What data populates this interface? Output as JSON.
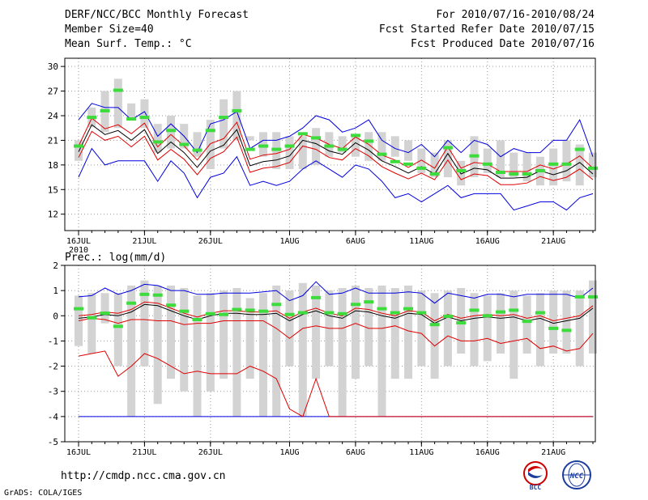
{
  "header": {
    "title": "DERF/NCC/BCC Monthly Forecast",
    "member_size": "Member Size=40",
    "variable": "Mean Surf. Temp.: °C",
    "period": "For 2010/07/16-2010/08/24",
    "start_ref": "Fcst Started Refer Date 2010/07/15",
    "produced": "Fcst Produced Date 2010/07/16"
  },
  "footer": {
    "url": "http://cmdp.ncc.cma.gov.cn",
    "grads": "GrADS: COLA/IGES",
    "logo_bcc": "BCC",
    "logo_ncc": "NCC"
  },
  "colors": {
    "box": "#d3d3d3",
    "median": "#3cdc3c",
    "mean": "#000000",
    "std": "#e00000",
    "minmax": "#0000e0",
    "grid": "#999999"
  },
  "chart_data": [
    {
      "type": "box-ensemble",
      "title": "Mean Surf. Temp.: °C",
      "days": 40,
      "xticks": [
        {
          "day": 0,
          "label": "16JUL",
          "sub": "2010"
        },
        {
          "day": 5,
          "label": "21JUL"
        },
        {
          "day": 10,
          "label": "26JUL"
        },
        {
          "day": 16,
          "label": "1AUG"
        },
        {
          "day": 21,
          "label": "6AUG"
        },
        {
          "day": 26,
          "label": "11AUG"
        },
        {
          "day": 31,
          "label": "16AUG"
        },
        {
          "day": 36,
          "label": "21AUG"
        }
      ],
      "ylim": [
        10,
        31
      ],
      "yticks": [
        12,
        15,
        18,
        21,
        24,
        27,
        30
      ],
      "box_low": [
        18.5,
        22.6,
        22,
        22.5,
        23.5,
        22.5,
        19.5,
        20,
        20,
        19,
        17.5,
        20,
        21,
        21,
        19,
        17.5,
        17.5,
        17.5,
        18,
        19,
        19.5,
        19,
        18.5,
        18.5,
        19,
        18.5,
        17,
        16.5,
        16.5,
        15.5,
        16.5,
        17,
        16.5,
        16.5,
        16,
        15.5,
        15.5,
        16,
        15.5,
        16.5
      ],
      "box_high": [
        21,
        25,
        27,
        28.5,
        25.5,
        26,
        23,
        24,
        23,
        22,
        23.5,
        26,
        27,
        21.5,
        22,
        22,
        21.5,
        21.5,
        22.5,
        22,
        21.5,
        21.5,
        22,
        22,
        21.5,
        21,
        20,
        19.5,
        21,
        18.5,
        21.5,
        20,
        21,
        19.5,
        19.5,
        19,
        20,
        21,
        20.5,
        19.5
      ],
      "median": [
        20.3,
        23.8,
        24.6,
        27.1,
        23.6,
        23.8,
        20.8,
        22.2,
        20.5,
        19.8,
        22.2,
        23.8,
        24.6,
        19.9,
        20.3,
        19.9,
        20.3,
        21.8,
        21.3,
        20.3,
        19.9,
        21.6,
        20.9,
        19.3,
        18.4,
        18.1,
        17.6,
        16.9,
        20.1,
        17.3,
        19.1,
        18.1,
        17.1,
        16.9,
        16.9,
        17.3,
        18.1,
        18.1,
        19.9,
        17.6
      ],
      "mean": [
        19.6,
        22.9,
        21.7,
        22.2,
        21.0,
        22.3,
        19.4,
        20.8,
        19.5,
        17.7,
        19.7,
        20.4,
        22.3,
        17.9,
        18.4,
        18.6,
        19.1,
        21.0,
        20.6,
        19.7,
        19.3,
        20.7,
        19.8,
        18.5,
        17.8,
        17.0,
        17.8,
        16.9,
        19.4,
        16.9,
        17.6,
        17.4,
        16.4,
        16.4,
        16.5,
        17.3,
        16.8,
        17.3,
        18.3,
        16.9
      ],
      "std_high": [
        20.3,
        23.7,
        22.4,
        22.9,
        21.8,
        23.1,
        20.2,
        21.7,
        20.3,
        18.6,
        20.6,
        21.2,
        23.2,
        18.7,
        19.2,
        19.4,
        19.9,
        21.7,
        21.3,
        20.5,
        20.0,
        21.4,
        20.5,
        19.2,
        18.6,
        17.7,
        18.6,
        17.6,
        20.2,
        17.6,
        18.3,
        18.1,
        17.2,
        17.2,
        17.2,
        18.0,
        17.5,
        18.1,
        19.1,
        17.6
      ],
      "std_low": [
        18.9,
        22.1,
        21.0,
        21.5,
        20.2,
        21.5,
        18.6,
        19.9,
        18.7,
        16.8,
        18.8,
        19.6,
        21.4,
        17.1,
        17.6,
        17.8,
        18.3,
        20.3,
        19.9,
        18.9,
        18.6,
        20.0,
        19.1,
        17.8,
        17.0,
        16.3,
        17.0,
        16.2,
        18.6,
        16.2,
        16.9,
        16.7,
        15.6,
        15.6,
        15.8,
        16.6,
        16.1,
        16.5,
        17.5,
        16.2
      ],
      "max": [
        23.5,
        25.5,
        25,
        25,
        23.5,
        24.5,
        21.5,
        23,
        21.5,
        19.5,
        23,
        23.5,
        24.5,
        20,
        21,
        21,
        21.5,
        22.5,
        24,
        23.5,
        22,
        22.5,
        23.5,
        21,
        20,
        19.5,
        20.5,
        19,
        21,
        19.5,
        21,
        20.5,
        19,
        20,
        19.5,
        19.5,
        21,
        21,
        23.5,
        19
      ],
      "min": [
        16.5,
        20,
        18,
        18.5,
        18.5,
        18.5,
        16,
        18.5,
        17,
        14,
        16.5,
        17,
        19,
        15.5,
        16,
        15.5,
        16,
        17.5,
        18.5,
        17.5,
        16.5,
        18,
        17.5,
        16,
        14,
        14.5,
        13.5,
        14.5,
        15.5,
        14,
        14.5,
        14.5,
        14.5,
        12.5,
        13,
        13.5,
        13.5,
        12.5,
        14,
        14.5
      ]
    },
    {
      "type": "box-ensemble",
      "title": "Prec.: log(mm/d)",
      "days": 40,
      "xticks": [
        {
          "day": 0,
          "label": "16JUL",
          "sub": "2010"
        },
        {
          "day": 5,
          "label": "21JUL"
        },
        {
          "day": 10,
          "label": "26JUL"
        },
        {
          "day": 16,
          "label": "1AUG"
        },
        {
          "day": 21,
          "label": "6AUG"
        },
        {
          "day": 26,
          "label": "11AUG"
        },
        {
          "day": 31,
          "label": "16AUG"
        },
        {
          "day": 36,
          "label": "21AUG"
        }
      ],
      "ylim": [
        -5,
        2
      ],
      "yticks": [
        -5,
        -4,
        -3,
        -2,
        -1,
        0,
        1,
        2
      ],
      "box_low": [
        -1.2,
        -1.5,
        -0.3,
        -2,
        -4,
        -2,
        -3.5,
        -2.5,
        -3,
        -4,
        -3,
        -2.5,
        -4,
        -2.5,
        -4,
        -4,
        -2,
        -4,
        -2.5,
        -2,
        -4,
        -2.5,
        -2,
        -4,
        -2.5,
        -2.5,
        -2,
        -2.5,
        -2,
        -1.5,
        -2,
        -1.8,
        -1.5,
        -2.5,
        -1.5,
        -2,
        -1.5,
        -1.5,
        -2,
        -1.5
      ],
      "box_high": [
        0.8,
        0.9,
        0.9,
        0.9,
        1.2,
        1.4,
        1.2,
        1.2,
        1.1,
        0.8,
        0.9,
        1,
        1.1,
        0.7,
        0.9,
        1.2,
        1,
        1.3,
        1.2,
        1,
        1.1,
        1.2,
        1.1,
        1.2,
        1.1,
        1.2,
        1.0,
        0.9,
        1.0,
        1.1,
        0.9,
        0.8,
        0.9,
        1.0,
        0.8,
        0.9,
        1.0,
        1.0,
        1.0,
        1.4
      ],
      "median": [
        0.28,
        -0.08,
        0.1,
        -0.42,
        0.5,
        0.85,
        0.82,
        0.42,
        0.18,
        -0.15,
        0.08,
        0.05,
        0.25,
        0.22,
        0.18,
        0.45,
        0.05,
        0.12,
        0.72,
        0.12,
        0.08,
        0.45,
        0.55,
        0.28,
        0.12,
        0.28,
        0.12,
        -0.35,
        -0.02,
        -0.28,
        0.22,
        0.0,
        0.15,
        0.22,
        -0.22,
        0.12,
        -0.5,
        -0.58,
        0.75,
        0.75
      ],
      "mean": [
        -0.1,
        -0.05,
        0.05,
        0.0,
        0.15,
        0.45,
        0.4,
        0.2,
        0.0,
        -0.15,
        0.0,
        0.1,
        0.1,
        0.05,
        0.05,
        0.1,
        -0.2,
        0.05,
        0.2,
        0.0,
        -0.1,
        0.2,
        0.15,
        0.0,
        -0.1,
        0.1,
        0.05,
        -0.3,
        -0.05,
        -0.2,
        -0.1,
        -0.05,
        -0.1,
        -0.05,
        -0.2,
        -0.1,
        -0.3,
        -0.2,
        -0.1,
        0.3
      ],
      "std_high": [
        0.0,
        0.05,
        0.15,
        0.1,
        0.25,
        0.55,
        0.5,
        0.3,
        0.1,
        -0.05,
        0.1,
        0.2,
        0.2,
        0.15,
        0.15,
        0.2,
        -0.1,
        0.15,
        0.3,
        0.1,
        0.0,
        0.3,
        0.25,
        0.1,
        0.0,
        0.2,
        0.15,
        -0.2,
        0.05,
        -0.1,
        0.0,
        0.05,
        0.0,
        0.05,
        -0.1,
        0.0,
        -0.2,
        -0.1,
        0.0,
        0.4
      ],
      "std_low": [
        -0.2,
        -0.15,
        -0.05,
        -0.1,
        0.05,
        0.35,
        0.3,
        0.1,
        -0.1,
        -0.25,
        -0.1,
        0.0,
        0.0,
        -0.05,
        -0.05,
        0.0,
        -0.3,
        -0.05,
        0.1,
        -0.1,
        -0.2,
        0.1,
        0.05,
        -0.1,
        -0.2,
        0.0,
        -0.05,
        -0.4,
        -0.15,
        -0.3,
        -0.2,
        -0.15,
        -0.2,
        -0.15,
        -0.3,
        -0.2,
        -0.4,
        -0.3,
        -0.2,
        0.2
      ],
      "red_low": [
        -1.6,
        -1.5,
        -1.4,
        -2.4,
        -2.0,
        -1.5,
        -1.7,
        -2.0,
        -2.3,
        -2.2,
        -2.3,
        -2.3,
        -2.3,
        -2.0,
        -2.2,
        -2.5,
        -3.7,
        -4.0,
        -2.5,
        -4.0,
        -4.0,
        -4.0,
        -4.0,
        -4.0,
        -4.0,
        -4.0,
        -4.0,
        -4.0,
        -4.0,
        -4.0,
        -4.0,
        -4.0,
        -4.0,
        -4.0,
        -4.0,
        -4.0,
        -4.0,
        -4.0,
        -4.0,
        -4.0
      ],
      "red_low_mid": [
        -0.2,
        -0.1,
        -0.15,
        -0.3,
        -0.15,
        -0.15,
        -0.2,
        -0.2,
        -0.35,
        -0.3,
        -0.3,
        -0.2,
        -0.2,
        -0.2,
        -0.2,
        -0.5,
        -0.9,
        -0.5,
        -0.4,
        -0.5,
        -0.5,
        -0.3,
        -0.5,
        -0.5,
        -0.4,
        -0.6,
        -0.7,
        -1.2,
        -0.8,
        -1.0,
        -1.0,
        -0.9,
        -1.1,
        -1.0,
        -0.9,
        -1.3,
        -1.2,
        -1.4,
        -1.3,
        -0.7
      ],
      "max": [
        0.75,
        0.8,
        1.1,
        0.85,
        1.0,
        1.25,
        1.2,
        1.0,
        1.0,
        0.85,
        0.85,
        0.9,
        0.9,
        0.9,
        0.95,
        1.0,
        0.6,
        0.8,
        1.35,
        0.85,
        0.9,
        1.1,
        0.9,
        0.9,
        0.9,
        0.95,
        0.9,
        0.5,
        0.9,
        0.8,
        0.7,
        0.85,
        0.85,
        0.75,
        0.85,
        0.85,
        0.85,
        0.85,
        0.7,
        1.1
      ],
      "min": [
        -4,
        -4,
        -4,
        -4,
        -4,
        -4,
        -4,
        -4,
        -4,
        -4,
        -4,
        -4,
        -4,
        -4,
        -4,
        -4,
        -4,
        -4,
        -4,
        -4,
        -4,
        -4,
        -4,
        -4,
        -4,
        -4,
        -4,
        -4,
        -4,
        -4,
        -4,
        -4,
        -4,
        -4,
        -4,
        -4,
        -4,
        -4,
        -4,
        -4
      ]
    }
  ]
}
